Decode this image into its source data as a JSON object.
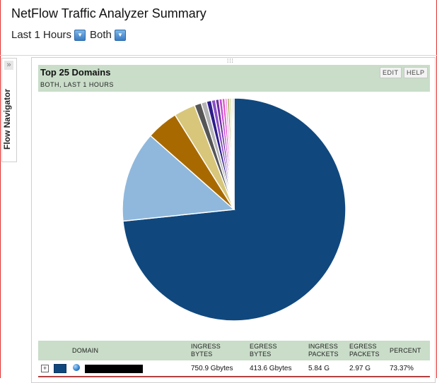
{
  "app": {
    "title": "NetFlow Traffic Analyzer Summary",
    "time_filter": "Last 1 Hours",
    "direction_filter": "Both"
  },
  "flow_navigator": {
    "label": "Flow Navigator",
    "collapse_icon": "»"
  },
  "widget": {
    "title": "Top 25 Domains",
    "subtitle": "BOTH, LAST 1 HOURS",
    "edit_label": "EDIT",
    "help_label": "HELP",
    "grip": "⁞⁞⁞"
  },
  "chart_data": {
    "type": "pie",
    "title": "Top 25 Domains",
    "values": [
      73.37,
      13.2,
      4.6,
      3.1,
      1.0,
      0.8,
      0.7,
      0.6,
      0.5,
      0.45,
      0.4,
      0.35,
      0.3,
      0.25,
      0.22,
      0.2
    ],
    "colors": [
      "#10487e",
      "#8fb8dc",
      "#a86a00",
      "#d8c67a",
      "#565656",
      "#b4b4b4",
      "#2d1c8a",
      "#8a4fc6",
      "#6a2fa0",
      "#c24ad6",
      "#e050c8",
      "#f0a0e0",
      "#a0a040",
      "#c0c060",
      "#d0d0a0",
      "#9a9a9a"
    ]
  },
  "table": {
    "columns": {
      "domain": "DOMAIN",
      "ingress_bytes": [
        "INGRESS",
        "BYTES"
      ],
      "egress_bytes": [
        "EGRESS",
        "BYTES"
      ],
      "ingress_packets": [
        "INGRESS",
        "PACKETS"
      ],
      "egress_packets": [
        "EGRESS",
        "PACKETS"
      ],
      "percent": "PERCENT"
    },
    "rows": [
      {
        "expander": "+",
        "ingress_bytes": "750.9 Gbytes",
        "egress_bytes": "413.6 Gbytes",
        "ingress_packets": "5.84 G",
        "egress_packets": "2.97 G",
        "percent": "73.37%"
      }
    ]
  }
}
